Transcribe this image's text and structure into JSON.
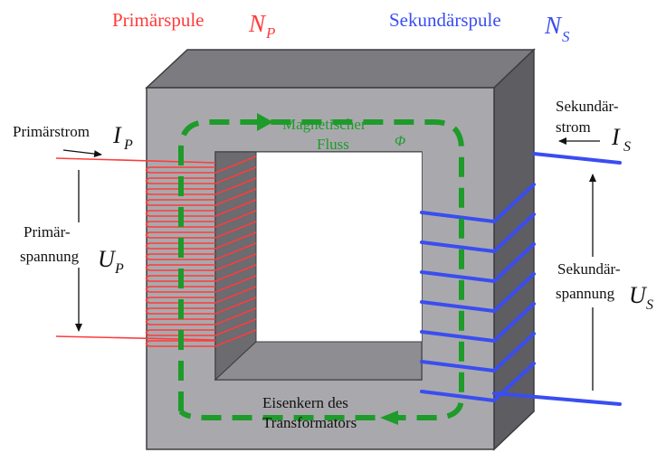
{
  "primary": {
    "coil_label": "Primärspule",
    "turns_symbol": "N",
    "turns_sub": "P",
    "current_label": "Primärstrom",
    "current_symbol": "I",
    "current_sub": "P",
    "voltage_label_1": "Primär-",
    "voltage_label_2": "spannung",
    "voltage_symbol": "U",
    "voltage_sub": "P"
  },
  "secondary": {
    "coil_label": "Sekundärspule",
    "turns_symbol": "N",
    "turns_sub": "S",
    "current_label_1": "Sekundär-",
    "current_label_2": "strom",
    "current_symbol": "I",
    "current_sub": "S",
    "voltage_label_1": "Sekundär-",
    "voltage_label_2": "spannung",
    "voltage_symbol": "U",
    "voltage_sub": "S"
  },
  "flux": {
    "label_1": "Magnetischer",
    "label_2": "Fluss",
    "symbol": "Φ"
  },
  "core": {
    "label_1": "Eisenkern des",
    "label_2": "Transformators"
  },
  "colors": {
    "primary": "#ff3b3b",
    "secondary": "#3a4df0",
    "flux": "#1e9b2a",
    "core_front": "#a9a9ad",
    "core_top": "#7b7b80",
    "core_side": "#5d5d62"
  }
}
